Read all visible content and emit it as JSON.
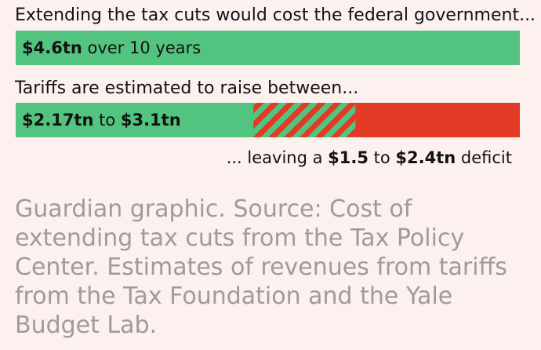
{
  "colors": {
    "background": "#fdf1f0",
    "green": "#52c47f",
    "red": "#e23a25",
    "text": "#121212",
    "source_text": "#a09a99"
  },
  "chart_data": {
    "type": "bar",
    "unit": "$tn",
    "scale_max": 4.6,
    "bars": [
      {
        "name": "tax-cuts-cost",
        "heading": "Extending the tax cuts would cost the federal government...",
        "value": 4.6,
        "label_value": "$4.6tn",
        "label_suffix": " over 10 years"
      },
      {
        "name": "tariff-revenue",
        "heading": "Tariffs are estimated to raise between...",
        "low": 2.17,
        "high": 3.1,
        "label_low": "$2.17tn",
        "label_mid": " to ",
        "label_high": "$3.1tn"
      }
    ],
    "deficit": {
      "low": 1.5,
      "high": 2.4,
      "prefix": "... leaving a ",
      "label_low": "$1.5",
      "mid": " to ",
      "label_high": "$2.4tn",
      "suffix": " deficit"
    }
  },
  "source": "Guardian graphic. Source: Cost of extending tax cuts from the Tax Policy Center. Estimates of revenues from tariffs from the Tax Foundation and the Yale Budget Lab."
}
